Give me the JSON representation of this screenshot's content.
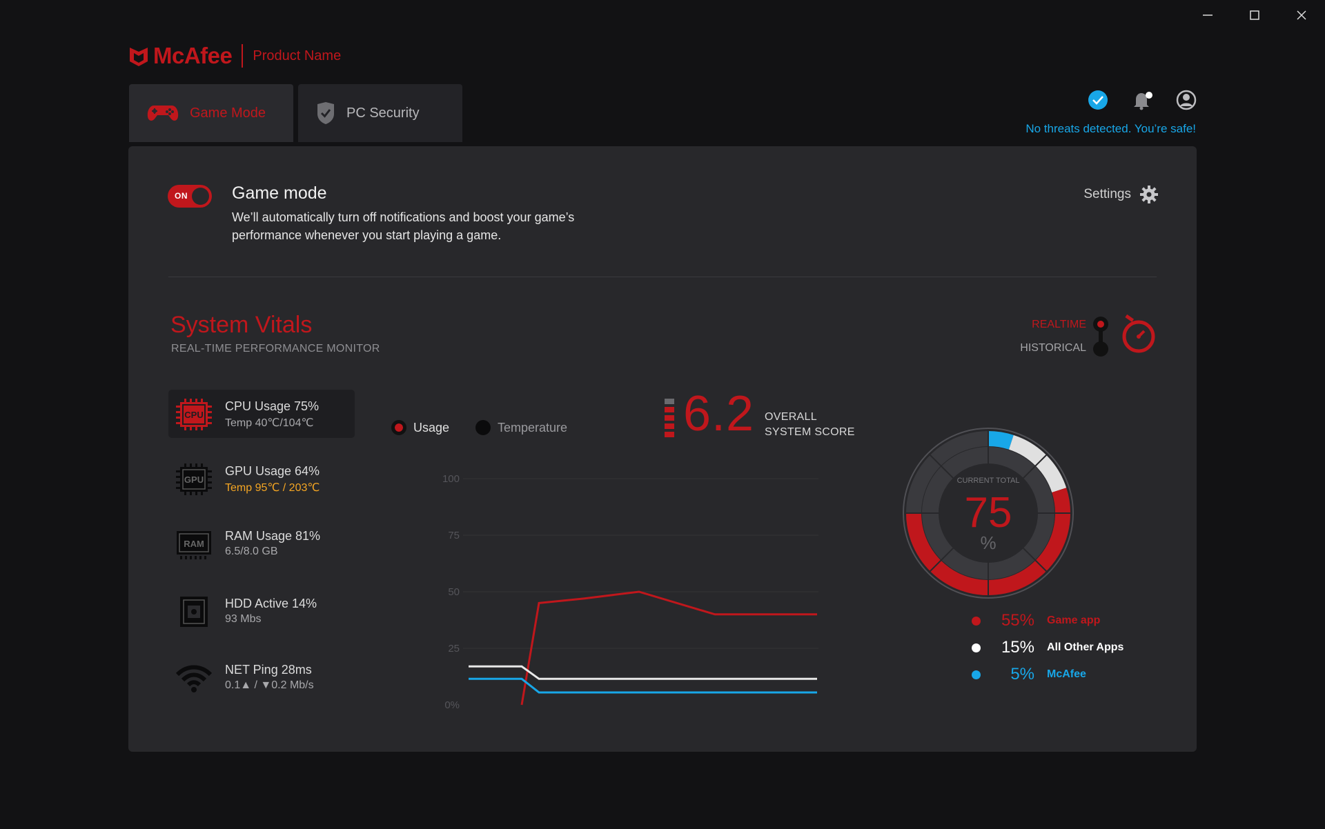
{
  "app": {
    "brand": "McAfee",
    "product_name": "Product Name"
  },
  "tabs": [
    {
      "label": "Game Mode",
      "icon": "gamepad-icon",
      "active": true
    },
    {
      "label": "PC Security",
      "icon": "shield-check-icon",
      "active": false
    }
  ],
  "header": {
    "status_text": "No threats detected. You’re safe!",
    "colors": {
      "accent": "#c0171c",
      "info": "#18a7e8"
    }
  },
  "game_mode": {
    "toggle_label": "ON",
    "title": "Game mode",
    "description": "We’ll automatically turn off notifications and boost your game’s performance whenever you start playing a game.",
    "settings_label": "Settings"
  },
  "vitals": {
    "title": "System Vitals",
    "subtitle": "REAL-TIME PERFORMANCE MONITOR",
    "mode_realtime": "REALTIME",
    "mode_historical": "HISTORICAL",
    "items": [
      {
        "icon_text": "CPU",
        "title": "CPU Usage 75%",
        "detail": "Temp 40℃/104℃"
      },
      {
        "icon_text": "GPU",
        "title": "GPU Usage 64%",
        "detail": "Temp 95℃ / 203℃"
      },
      {
        "icon_text": "RAM",
        "title": "RAM Usage 81%",
        "detail": "6.5/8.0 GB"
      },
      {
        "icon_text": "",
        "title": "HDD Active 14%",
        "detail": "93 Mbs"
      },
      {
        "icon_text": "",
        "title": "NET Ping 28ms",
        "detail": "0.1▲ / ▼0.2 Mb/s"
      }
    ]
  },
  "score": {
    "value": "6.2",
    "label_line1": "OVERALL",
    "label_line2": "SYSTEM SCORE"
  },
  "chart_data": {
    "type": "line",
    "legend": [
      "Usage",
      "Temperature"
    ],
    "y_ticks": [
      "100",
      "75",
      "50",
      "25",
      "0%"
    ],
    "ylim": [
      0,
      100
    ],
    "x": [
      0,
      1,
      2,
      3,
      4,
      5,
      6,
      7
    ],
    "series": [
      {
        "color": "#c0171c",
        "values": [
          null,
          0,
          45,
          47,
          50,
          40,
          40,
          40
        ]
      },
      {
        "color": "#e8e8e8",
        "values": [
          17,
          17,
          11.5,
          11.5,
          11.5,
          11.5,
          11.5,
          11.5
        ]
      },
      {
        "color": "#18a7e8",
        "values": [
          11.5,
          11.5,
          5.5,
          5.5,
          5.5,
          5.5,
          5.5,
          5.5
        ]
      }
    ]
  },
  "gauge": {
    "caption": "CURRENT TOTAL",
    "value": "75",
    "unit": "%",
    "segments": [
      {
        "value": 5,
        "color": "#18a7e8"
      },
      {
        "value": 15,
        "color": "#e0e0e0"
      },
      {
        "value": 55,
        "color": "#c0171c"
      }
    ],
    "breakdown": [
      {
        "percent": "55%",
        "name": "Game app",
        "color": "#c0171c"
      },
      {
        "percent": "15%",
        "name": "All Other Apps",
        "color": "#ffffff"
      },
      {
        "percent": "5%",
        "name": "McAfee",
        "color": "#18a7e8"
      }
    ]
  }
}
